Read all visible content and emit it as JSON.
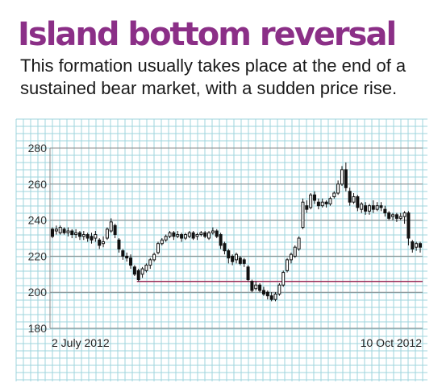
{
  "title": "Island bottom reversal",
  "subtitle": "This formation usually takes place at the end of a sustained bear market, with a sudden price rise.",
  "colors": {
    "title": "#8b2f87",
    "grid": "#9fd4de",
    "major_grid": "#8a8a8a",
    "support_line": "#9a2a55",
    "candle": "#111111"
  },
  "chart_data": {
    "type": "candlestick",
    "title": "Island bottom reversal",
    "xlabel": "",
    "ylabel": "",
    "ylim": [
      180,
      280
    ],
    "yticks": [
      180,
      200,
      220,
      240,
      260,
      280
    ],
    "xtick_labels": [
      "2 July 2012",
      "10 Oct 2012"
    ],
    "grid": true,
    "support_level": 206,
    "series": [
      {
        "values": [
          [
            235,
            231,
            236,
            230
          ],
          [
            234,
            235,
            237,
            232
          ],
          [
            233,
            236,
            237,
            232
          ],
          [
            235,
            233,
            236,
            232
          ],
          [
            233,
            234,
            236,
            231
          ],
          [
            234,
            232,
            235,
            230
          ],
          [
            232,
            233,
            235,
            230
          ],
          [
            233,
            231,
            234,
            229
          ],
          [
            231,
            232,
            234,
            229
          ],
          [
            232,
            230,
            233,
            228
          ],
          [
            231,
            229,
            233,
            227
          ],
          [
            230,
            232,
            234,
            228
          ],
          [
            229,
            226,
            230,
            224
          ],
          [
            227,
            228,
            231,
            225
          ],
          [
            230,
            235,
            236,
            229
          ],
          [
            234,
            239,
            241,
            233
          ],
          [
            237,
            232,
            238,
            230
          ],
          [
            229,
            224,
            230,
            222
          ],
          [
            223,
            220,
            224,
            218
          ],
          [
            220,
            219,
            222,
            217
          ],
          [
            219,
            215,
            221,
            213
          ],
          [
            214,
            210,
            215,
            209
          ],
          [
            212,
            207,
            213,
            206
          ],
          [
            210,
            213,
            214,
            208
          ],
          [
            212,
            215,
            216,
            211
          ],
          [
            215,
            218,
            219,
            213
          ],
          [
            218,
            221,
            222,
            217
          ],
          [
            222,
            227,
            228,
            221
          ],
          [
            227,
            229,
            230,
            226
          ],
          [
            229,
            231,
            232,
            228
          ],
          [
            231,
            233,
            234,
            230
          ],
          [
            233,
            231,
            234,
            229
          ],
          [
            231,
            232,
            234,
            230
          ],
          [
            232,
            230,
            233,
            228
          ],
          [
            230,
            232,
            233,
            229
          ],
          [
            231,
            233,
            234,
            230
          ],
          [
            233,
            230,
            234,
            229
          ],
          [
            231,
            232,
            233,
            229
          ],
          [
            232,
            233,
            234,
            231
          ],
          [
            233,
            231,
            234,
            230
          ],
          [
            230,
            233,
            234,
            229
          ],
          [
            233,
            234,
            236,
            232
          ],
          [
            234,
            231,
            235,
            230
          ],
          [
            232,
            226,
            233,
            224
          ],
          [
            227,
            223,
            228,
            221
          ],
          [
            223,
            219,
            224,
            216
          ],
          [
            220,
            217,
            221,
            215
          ],
          [
            218,
            221,
            222,
            216
          ],
          [
            219,
            216,
            220,
            215
          ],
          [
            218,
            216,
            219,
            214
          ],
          [
            214,
            207,
            215,
            206
          ],
          [
            206,
            201,
            207,
            200
          ],
          [
            202,
            204,
            206,
            201
          ],
          [
            204,
            201,
            205,
            200
          ],
          [
            201,
            199,
            203,
            198
          ],
          [
            200,
            198,
            201,
            196
          ],
          [
            198,
            196,
            200,
            195
          ],
          [
            196,
            199,
            200,
            195
          ],
          [
            199,
            204,
            205,
            198
          ],
          [
            204,
            211,
            212,
            203
          ],
          [
            212,
            218,
            219,
            211
          ],
          [
            218,
            221,
            222,
            216
          ],
          [
            220,
            225,
            226,
            219
          ],
          [
            224,
            230,
            231,
            223
          ],
          [
            236,
            250,
            252,
            235
          ],
          [
            248,
            246,
            251,
            244
          ],
          [
            247,
            254,
            255,
            246
          ],
          [
            254,
            251,
            256,
            249
          ],
          [
            250,
            248,
            252,
            246
          ],
          [
            248,
            250,
            252,
            247
          ],
          [
            250,
            249,
            251,
            247
          ],
          [
            249,
            252,
            253,
            248
          ],
          [
            253,
            255,
            256,
            252
          ],
          [
            255,
            260,
            262,
            254
          ],
          [
            260,
            268,
            270,
            259
          ],
          [
            268,
            258,
            272,
            256
          ],
          [
            256,
            250,
            258,
            248
          ],
          [
            250,
            253,
            255,
            249
          ],
          [
            253,
            247,
            254,
            245
          ],
          [
            246,
            249,
            250,
            244
          ],
          [
            248,
            245,
            250,
            243
          ],
          [
            245,
            248,
            249,
            243
          ],
          [
            248,
            246,
            251,
            244
          ],
          [
            246,
            248,
            250,
            245
          ],
          [
            248,
            247,
            250,
            245
          ],
          [
            246,
            244,
            248,
            242
          ],
          [
            244,
            241,
            245,
            240
          ],
          [
            242,
            243,
            244,
            240
          ],
          [
            243,
            241,
            244,
            239
          ],
          [
            241,
            242,
            244,
            240
          ],
          [
            242,
            244,
            245,
            238
          ],
          [
            244,
            230,
            245,
            226
          ],
          [
            228,
            224,
            229,
            222
          ],
          [
            225,
            227,
            228,
            223
          ],
          [
            227,
            225,
            228,
            222
          ]
        ]
      }
    ]
  }
}
